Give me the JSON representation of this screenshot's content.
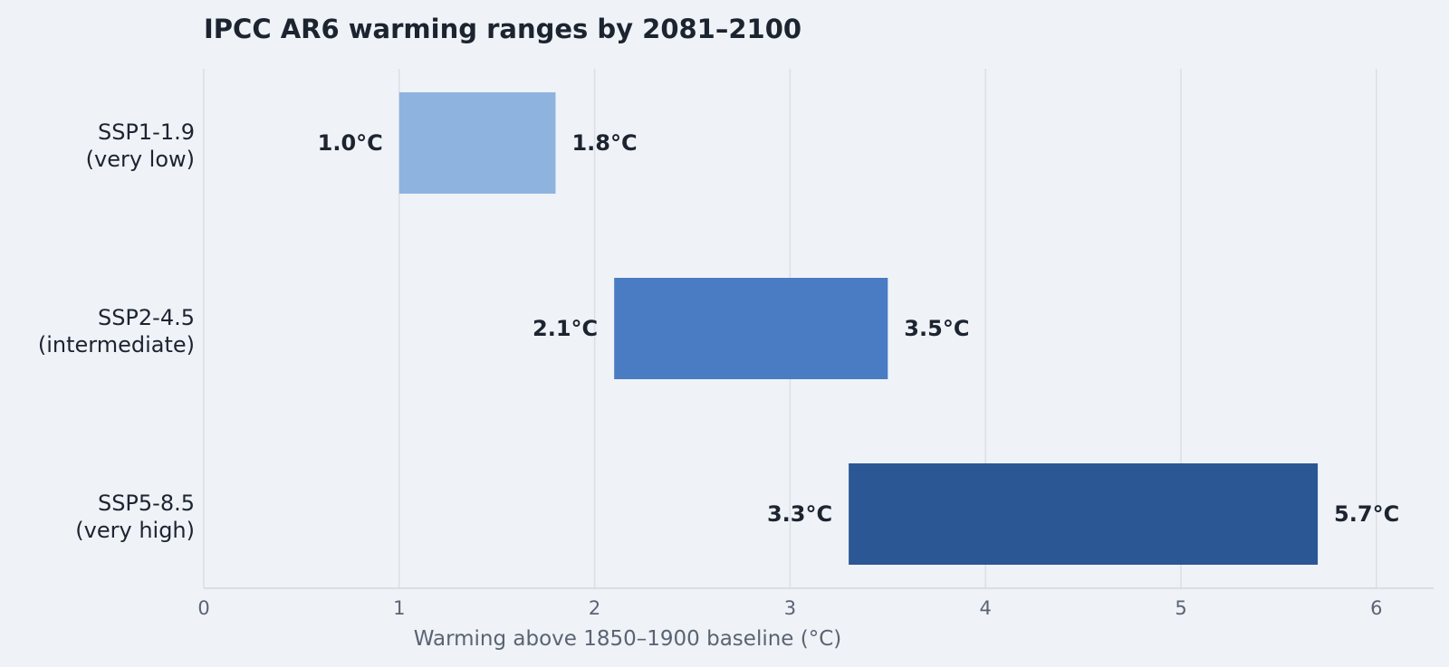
{
  "chart_data": {
    "type": "bar",
    "orientation": "horizontal-range",
    "title": "IPCC AR6 warming ranges by 2081–2100",
    "xlabel": "Warming above 1850–1900 baseline (°C)",
    "ylabel": "",
    "xlim": [
      0,
      6.3
    ],
    "xticks": [
      0,
      1,
      2,
      3,
      4,
      5,
      6
    ],
    "grid": "vertical",
    "legend": "none",
    "categories": [
      [
        "SSP1-1.9",
        "(very low)"
      ],
      [
        "SSP2-4.5",
        "(intermediate)"
      ],
      [
        "SSP5-8.5",
        "(very high)"
      ]
    ],
    "ranges": [
      {
        "low": 1.0,
        "high": 1.8,
        "low_label": "1.0°C",
        "high_label": "1.8°C",
        "color": "#8fb3df"
      },
      {
        "low": 2.1,
        "high": 3.5,
        "low_label": "2.1°C",
        "high_label": "3.5°C",
        "color": "#4a7cc3"
      },
      {
        "low": 3.3,
        "high": 5.7,
        "low_label": "3.3°C",
        "high_label": "5.7°C",
        "color": "#2b5795"
      }
    ]
  }
}
